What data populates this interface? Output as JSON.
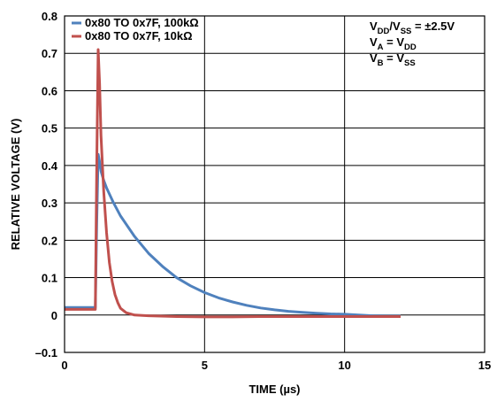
{
  "chart_data": {
    "type": "line",
    "xlabel": "TIME (µs)",
    "ylabel": "RELATIVE VOLTAGE (V)",
    "xlim": [
      0,
      15
    ],
    "ylim": [
      -0.1,
      0.8
    ],
    "x_ticks": [
      "0",
      "5",
      "10",
      "15"
    ],
    "y_ticks": [
      "–0.1",
      "0",
      "0.1",
      "0.2",
      "0.3",
      "0.4",
      "0.5",
      "0.6",
      "0.7",
      "0.8"
    ],
    "grid": true,
    "legend_position": "top-left",
    "annotations": [
      {
        "base": "V",
        "sub": "DD",
        "base2": "/V",
        "sub2": "SS",
        "rest": " = ±2.5V"
      },
      {
        "base": "V",
        "sub": "A",
        "base2": " = V",
        "sub2": "DD",
        "rest": ""
      },
      {
        "base": "V",
        "sub": "B",
        "base2": " = V",
        "sub2": "SS",
        "rest": ""
      }
    ],
    "series": [
      {
        "name": "0x80 TO 0x7F, 100kΩ",
        "color": "#4f81bd",
        "x": [
          0,
          1.0,
          1.1,
          1.15,
          1.2,
          1.25,
          1.3,
          1.4,
          1.5,
          1.75,
          2.0,
          2.5,
          3.0,
          3.5,
          4.0,
          4.5,
          5.0,
          5.5,
          6.0,
          6.5,
          7.0,
          7.5,
          8.0,
          8.5,
          9.0,
          9.5,
          10.0,
          10.5,
          11.0,
          11.5,
          12.0
        ],
        "y": [
          0.02,
          0.02,
          0.02,
          0.25,
          0.43,
          0.41,
          0.385,
          0.36,
          0.34,
          0.3,
          0.265,
          0.21,
          0.165,
          0.13,
          0.1,
          0.078,
          0.06,
          0.046,
          0.035,
          0.026,
          0.019,
          0.014,
          0.01,
          0.007,
          0.005,
          0.003,
          0.002,
          0.0,
          -0.002,
          -0.003,
          -0.003
        ]
      },
      {
        "name": "0x80 TO 0x7F, 10kΩ",
        "color": "#c0504d",
        "x": [
          0,
          1.0,
          1.1,
          1.15,
          1.2,
          1.25,
          1.3,
          1.4,
          1.5,
          1.6,
          1.7,
          1.8,
          1.9,
          2.0,
          2.2,
          2.5,
          3.0,
          4.0,
          5.0,
          6.0,
          7.0,
          8.0,
          9.0,
          10.0,
          11.0,
          12.0
        ],
        "y": [
          0.015,
          0.015,
          0.015,
          0.4,
          0.71,
          0.62,
          0.48,
          0.33,
          0.22,
          0.14,
          0.09,
          0.055,
          0.033,
          0.018,
          0.006,
          0.0,
          -0.002,
          -0.004,
          -0.005,
          -0.005,
          -0.004,
          -0.004,
          -0.004,
          -0.004,
          -0.004,
          -0.004
        ]
      }
    ]
  }
}
